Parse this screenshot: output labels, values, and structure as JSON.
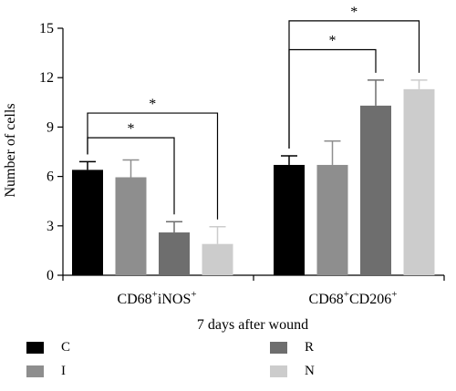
{
  "chart_data": {
    "type": "bar",
    "title": "",
    "xlabel": "7 days after wound",
    "ylabel": "Number of cells",
    "ylim": [
      0,
      15
    ],
    "yticks": [
      0,
      3,
      6,
      9,
      12,
      15
    ],
    "groups": [
      {
        "label_main": "CD68",
        "label_sup": "+",
        "label_main2": "iNOS",
        "label_sup2": "+"
      },
      {
        "label_main": "CD68",
        "label_sup": "+",
        "label_main2": "CD206",
        "label_sup2": "+"
      }
    ],
    "series": [
      {
        "name": "C",
        "color": "#000000",
        "values": [
          6.4,
          6.7
        ],
        "errors": [
          0.5,
          0.55
        ]
      },
      {
        "name": "I",
        "color": "#8e8e8e",
        "values": [
          5.95,
          6.7
        ],
        "errors": [
          1.05,
          1.45
        ]
      },
      {
        "name": "R",
        "color": "#6e6e6e",
        "values": [
          2.6,
          10.3
        ],
        "errors": [
          0.65,
          1.55
        ]
      },
      {
        "name": "N",
        "color": "#cccccc",
        "values": [
          1.9,
          11.3
        ],
        "errors": [
          1.05,
          0.55
        ]
      }
    ],
    "significance": [
      {
        "group": 0,
        "from": 0,
        "to": 2,
        "label": "*",
        "level": 8.35
      },
      {
        "group": 0,
        "from": 0,
        "to": 3,
        "label": "*",
        "level": 9.85
      },
      {
        "group": 1,
        "from": 0,
        "to": 2,
        "label": "*",
        "level": 13.7
      },
      {
        "group": 1,
        "from": 0,
        "to": 3,
        "label": "*",
        "level": 15.45
      }
    ],
    "legend_placement": "bottom"
  }
}
